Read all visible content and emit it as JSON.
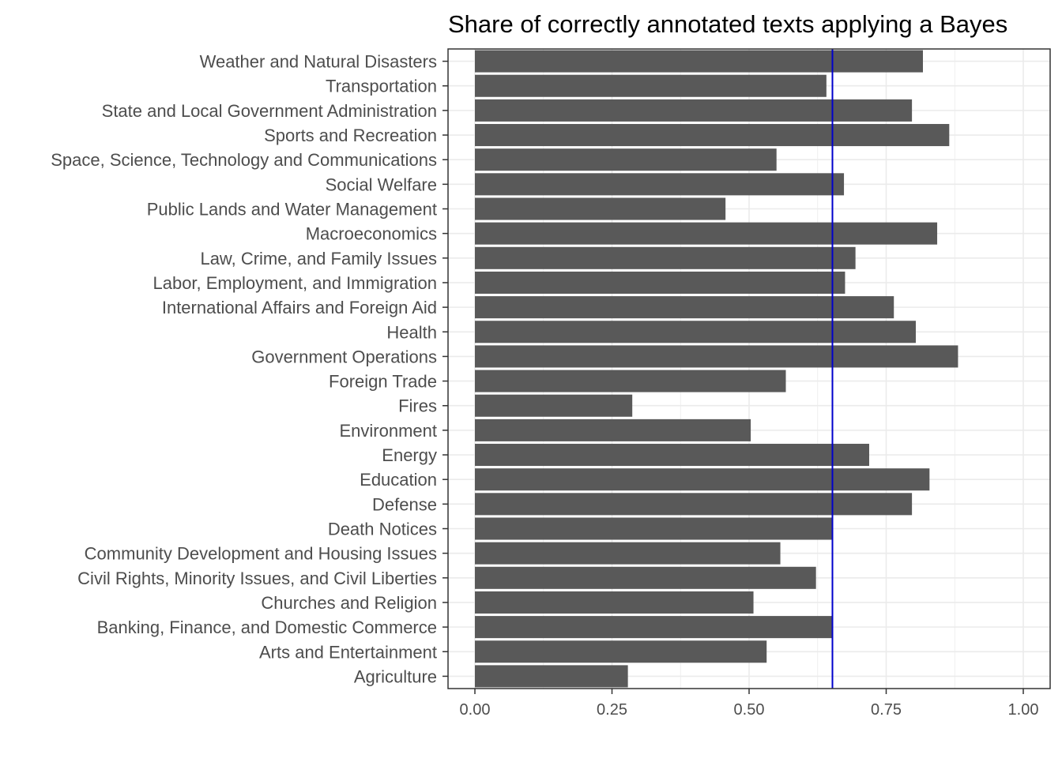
{
  "chart_data": {
    "type": "bar",
    "orientation": "horizontal",
    "title": "Share of correctly annotated texts applying a Bayes",
    "xlabel": "",
    "ylabel": "",
    "xlim": [
      0,
      1
    ],
    "xticks": [
      "0.00",
      "0.25",
      "0.50",
      "0.75",
      "1.00"
    ],
    "grid": true,
    "bar_color": "#595959",
    "reference_line": {
      "value": 0.652,
      "color": "#0000cc"
    },
    "categories": [
      "Weather and Natural Disasters",
      "Transportation",
      "State and Local Government Administration",
      "Sports and Recreation",
      "Space, Science, Technology and Communications",
      "Social Welfare",
      "Public Lands and Water Management",
      "Macroeconomics",
      "Law, Crime, and Family Issues",
      "Labor, Employment, and Immigration",
      "International Affairs and Foreign Aid",
      "Health",
      "Government Operations",
      "Foreign Trade",
      "Fires",
      "Environment",
      "Energy",
      "Education",
      "Defense",
      "Death Notices",
      "Community Development and Housing Issues",
      "Civil Rights, Minority Issues, and Civil Liberties",
      "Churches and Religion",
      "Banking, Finance, and Domestic Commerce",
      "Arts and Entertainment",
      "Agriculture"
    ],
    "values": [
      0.817,
      0.641,
      0.797,
      0.865,
      0.55,
      0.673,
      0.457,
      0.843,
      0.694,
      0.675,
      0.764,
      0.804,
      0.881,
      0.567,
      0.287,
      0.503,
      0.719,
      0.829,
      0.797,
      0.652,
      0.557,
      0.622,
      0.508,
      0.652,
      0.532,
      0.279
    ]
  }
}
